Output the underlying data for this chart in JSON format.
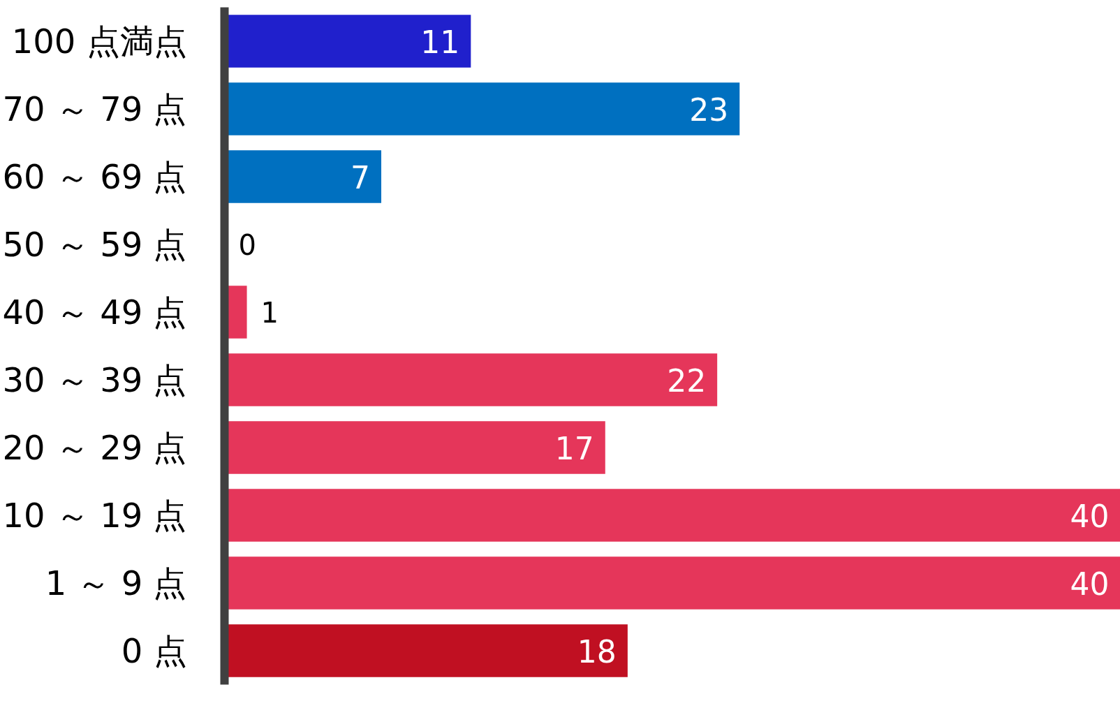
{
  "chart_data": {
    "type": "bar",
    "orientation": "horizontal",
    "categories": [
      "100 点満点",
      "70 ～ 79 点",
      "60 ～ 69 点",
      "50 ～ 59 点",
      "40 ～ 49 点",
      "30 ～ 39 点",
      "20 ～ 29 点",
      "10 ～ 19 点",
      "1 ～ 9 点",
      "0 点"
    ],
    "values": [
      11,
      23,
      7,
      0,
      1,
      22,
      17,
      40,
      40,
      18
    ],
    "colors": [
      "#2020cc",
      "#0070c0",
      "#0070c0",
      "#0070c0",
      "#e5365a",
      "#e5365a",
      "#e5365a",
      "#e5365a",
      "#e5365a",
      "#c01022"
    ],
    "data_labels": true,
    "grid": false
  }
}
